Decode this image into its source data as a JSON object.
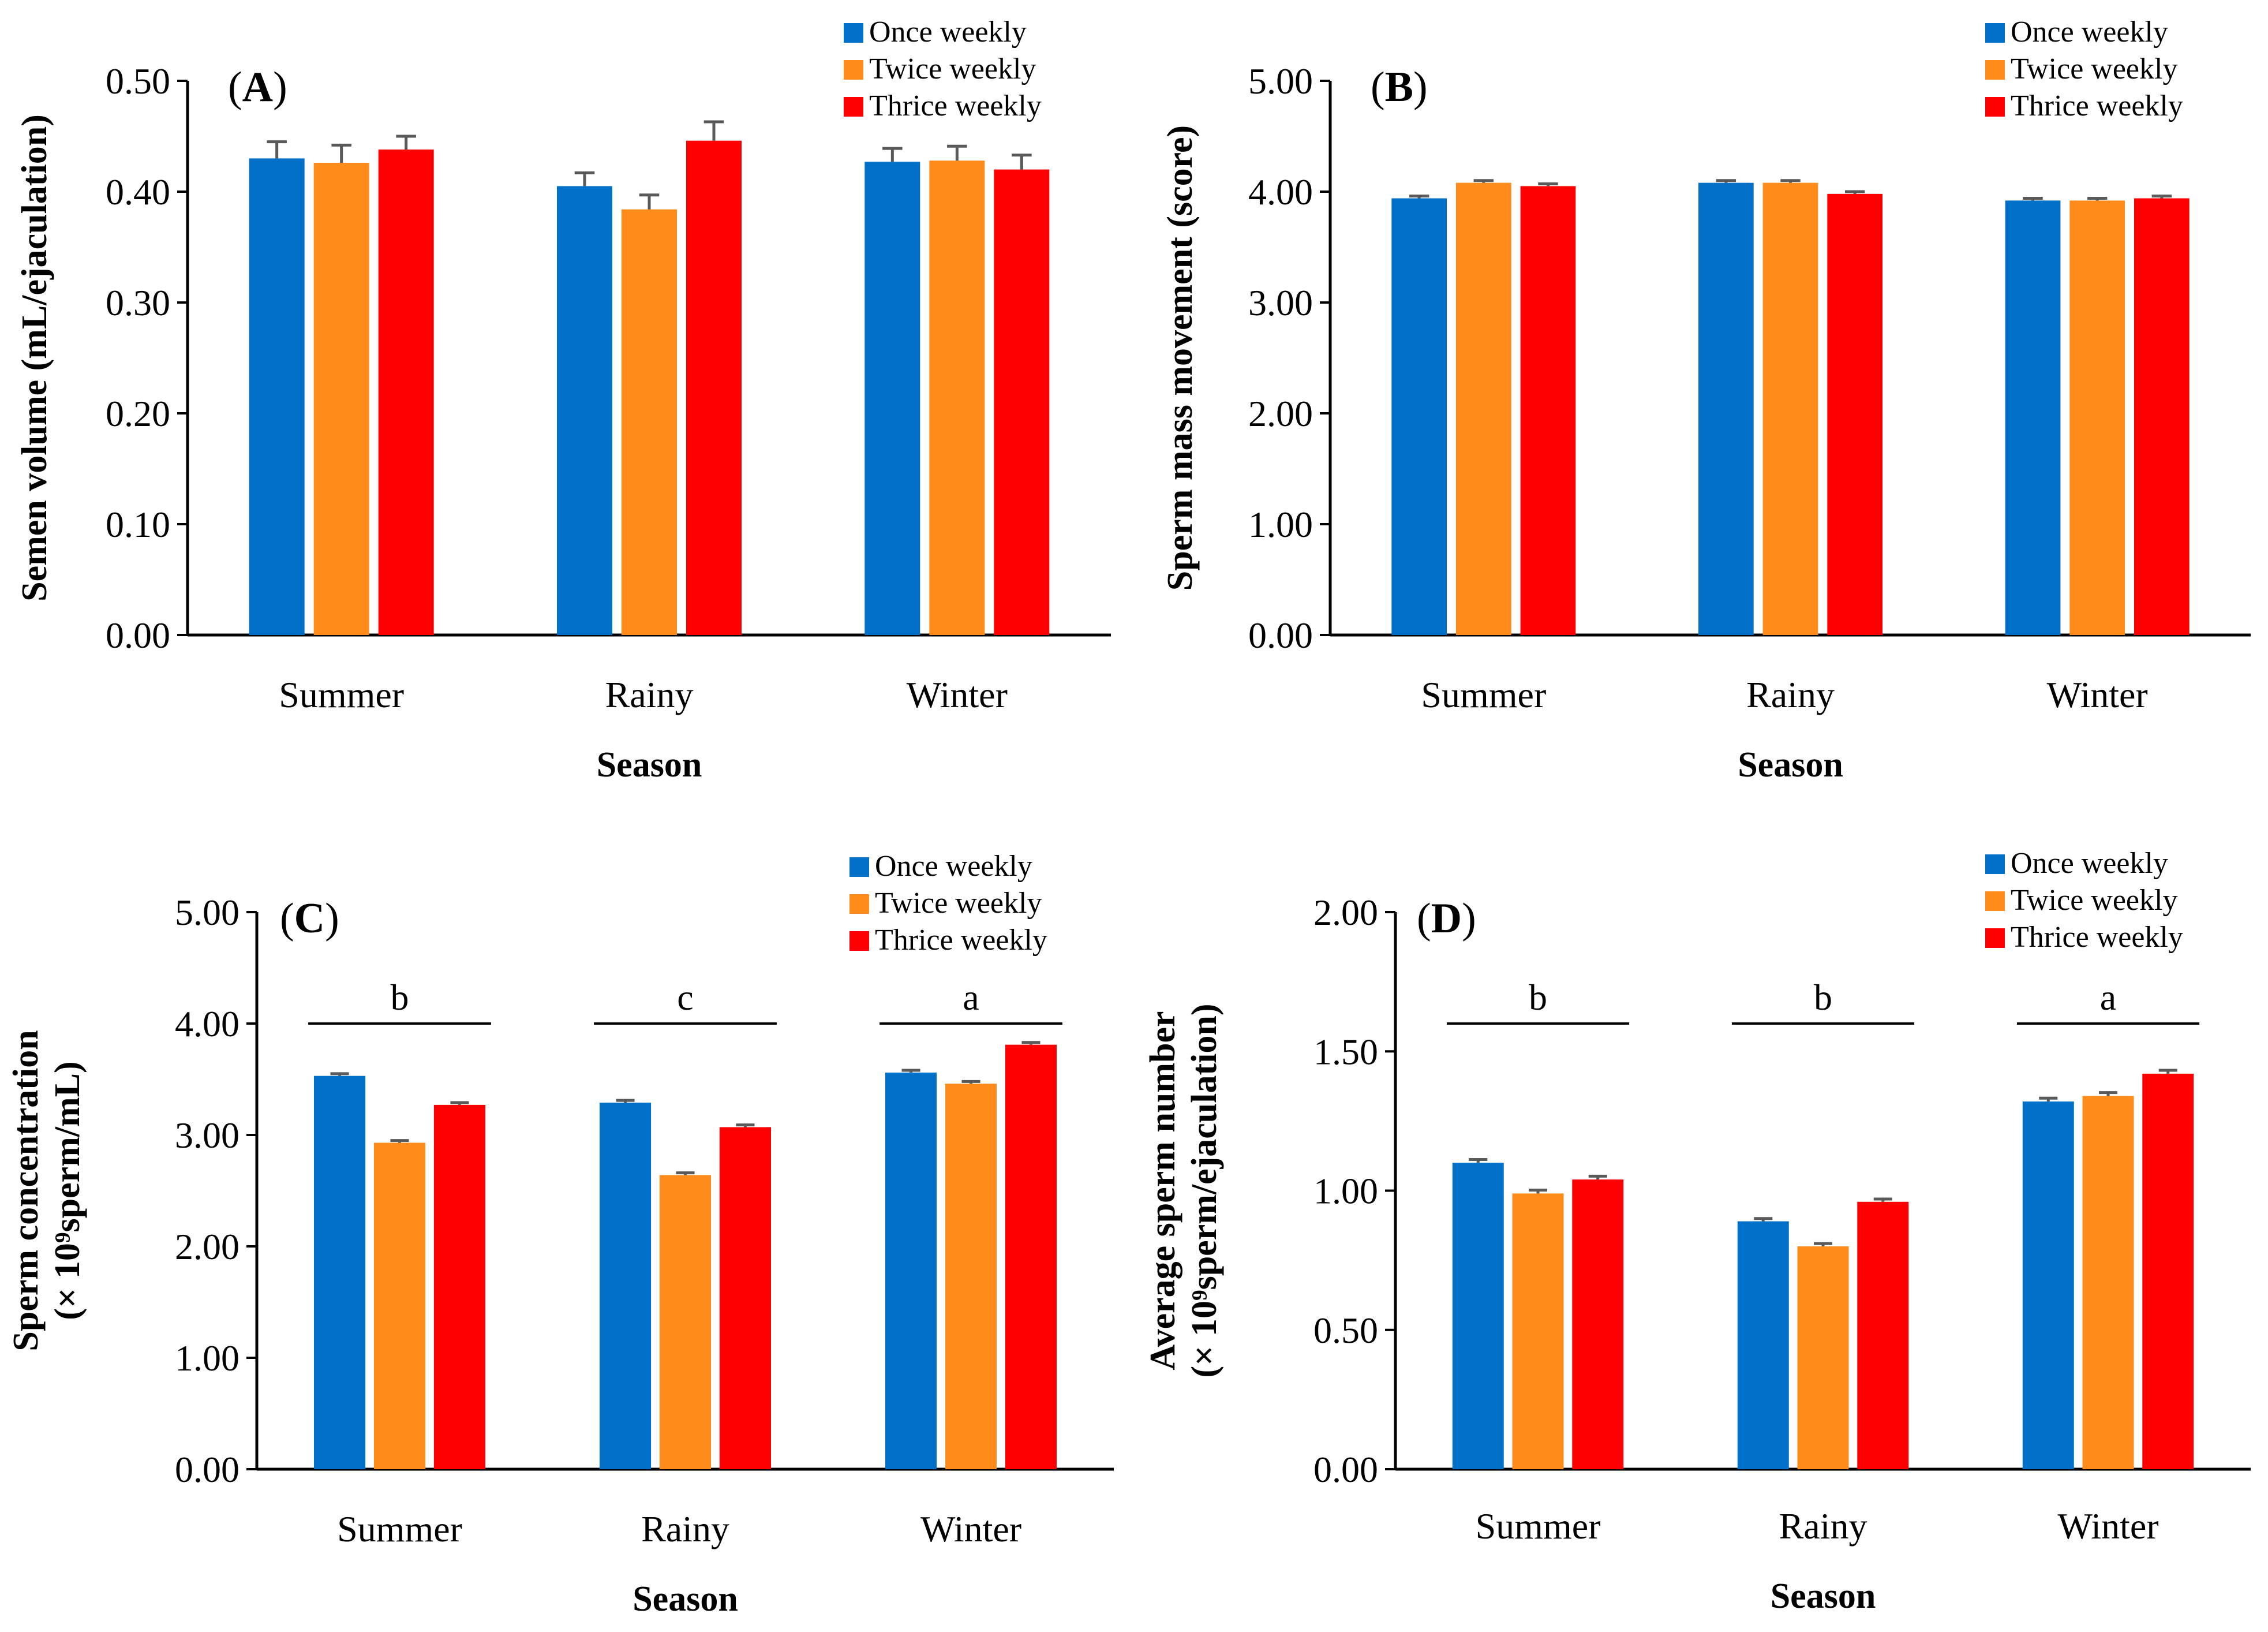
{
  "colors": {
    "once_weekly": "#0070C8",
    "twice_weekly": "#FF8C1A",
    "thrice_weekly": "#FF0000",
    "error_bar": "#595959",
    "axis": "#000000"
  },
  "chart_data": [
    {
      "id": "A",
      "panel_label": "A",
      "type": "bar",
      "title": "",
      "xlabel": "Season",
      "ylabel_lines": [
        "Semen volume (mL/ejaculation)"
      ],
      "categories": [
        "Summer",
        "Rainy",
        "Winter"
      ],
      "ylim": [
        0,
        0.5
      ],
      "yticks": [
        "0.00",
        "0.10",
        "0.20",
        "0.30",
        "0.40",
        "0.50"
      ],
      "legend": [
        "Once weekly",
        "Twice weekly",
        "Thrice weekly"
      ],
      "legend_position": "top-right",
      "grid": false,
      "series": [
        {
          "name": "Once weekly",
          "values": [
            0.43,
            0.405,
            0.427
          ],
          "errors": [
            0.015,
            0.012,
            0.012
          ]
        },
        {
          "name": "Twice weekly",
          "values": [
            0.426,
            0.384,
            0.428
          ],
          "errors": [
            0.016,
            0.013,
            0.013
          ]
        },
        {
          "name": "Thrice weekly",
          "values": [
            0.438,
            0.446,
            0.42
          ],
          "errors": [
            0.012,
            0.017,
            0.013
          ]
        }
      ],
      "significance": []
    },
    {
      "id": "B",
      "panel_label": "B",
      "type": "bar",
      "title": "",
      "xlabel": "Season",
      "ylabel_lines": [
        "Sperm mass movement (score)"
      ],
      "categories": [
        "Summer",
        "Rainy",
        "Winter"
      ],
      "ylim": [
        0,
        5
      ],
      "yticks": [
        "0.00",
        "1.00",
        "2.00",
        "3.00",
        "4.00",
        "5.00"
      ],
      "legend": [
        "Once weekly",
        "Twice weekly",
        "Thrice weekly"
      ],
      "legend_position": "top-right",
      "grid": false,
      "series": [
        {
          "name": "Once weekly",
          "values": [
            3.94,
            4.08,
            3.92
          ],
          "errors": [
            0.02,
            0.02,
            0.02
          ]
        },
        {
          "name": "Twice weekly",
          "values": [
            4.08,
            4.08,
            3.92
          ],
          "errors": [
            0.02,
            0.02,
            0.02
          ]
        },
        {
          "name": "Thrice weekly",
          "values": [
            4.05,
            3.98,
            3.94
          ],
          "errors": [
            0.02,
            0.02,
            0.02
          ]
        }
      ],
      "significance": []
    },
    {
      "id": "C",
      "panel_label": "C",
      "type": "bar",
      "title": "",
      "xlabel": "Season",
      "ylabel_lines": [
        "Sperm concentration",
        "(× 10⁹sperm/mL)"
      ],
      "categories": [
        "Summer",
        "Rainy",
        "Winter"
      ],
      "ylim": [
        0,
        5
      ],
      "yticks": [
        "0.00",
        "1.00",
        "2.00",
        "3.00",
        "4.00",
        "5.00"
      ],
      "legend": [
        "Once weekly",
        "Twice weekly",
        "Thrice weekly"
      ],
      "legend_position": "top-right",
      "grid": false,
      "series": [
        {
          "name": "Once weekly",
          "values": [
            3.53,
            3.29,
            3.56
          ],
          "errors": [
            0.02,
            0.02,
            0.02
          ]
        },
        {
          "name": "Twice weekly",
          "values": [
            2.93,
            2.64,
            3.46
          ],
          "errors": [
            0.02,
            0.02,
            0.02
          ]
        },
        {
          "name": "Thrice weekly",
          "values": [
            3.27,
            3.07,
            3.81
          ],
          "errors": [
            0.02,
            0.02,
            0.02
          ]
        }
      ],
      "significance": [
        "b",
        "c",
        "a"
      ],
      "significance_level": 4.0
    },
    {
      "id": "D",
      "panel_label": "D",
      "type": "bar",
      "title": "",
      "xlabel": "Season",
      "ylabel_lines": [
        "Average sperm number",
        "(× 10⁹sperm/ejaculation)"
      ],
      "categories": [
        "Summer",
        "Rainy",
        "Winter"
      ],
      "ylim": [
        0,
        2
      ],
      "yticks": [
        "0.00",
        "0.50",
        "1.00",
        "1.50",
        "2.00"
      ],
      "legend": [
        "Once weekly",
        "Twice weekly",
        "Thrice weekly"
      ],
      "legend_position": "top-right",
      "grid": false,
      "series": [
        {
          "name": "Once weekly",
          "values": [
            1.1,
            0.89,
            1.32
          ],
          "errors": [
            0.012,
            0.01,
            0.012
          ]
        },
        {
          "name": "Twice weekly",
          "values": [
            0.99,
            0.8,
            1.34
          ],
          "errors": [
            0.012,
            0.01,
            0.012
          ]
        },
        {
          "name": "Thrice weekly",
          "values": [
            1.04,
            0.96,
            1.42
          ],
          "errors": [
            0.012,
            0.01,
            0.012
          ]
        }
      ],
      "significance": [
        "b",
        "b",
        "a"
      ],
      "significance_level": 1.6
    }
  ]
}
